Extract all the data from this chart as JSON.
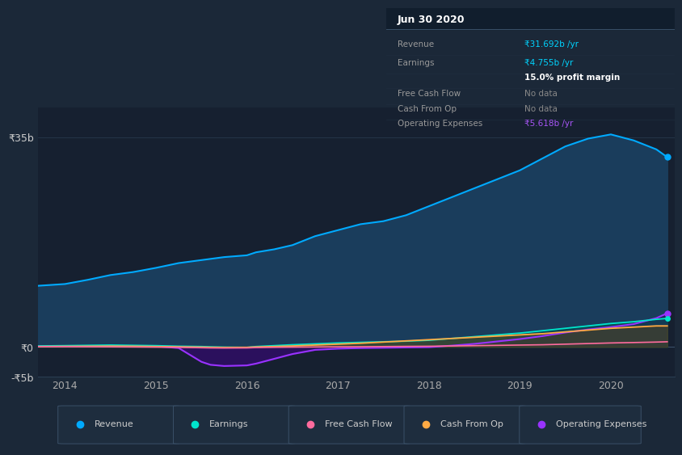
{
  "bg_color": "#1b2838",
  "plot_bg_color": "#1e2d3e",
  "chart_bg_color": "#162030",
  "grid_color": "#2a3d52",
  "title_box": {
    "date": "Jun 30 2020",
    "rows": [
      {
        "label": "Revenue",
        "value": "₹31.692b /yr",
        "value_color": "#00d4ff"
      },
      {
        "label": "Earnings",
        "value": "₹4.755b /yr",
        "value_color": "#00d4ff"
      },
      {
        "label": "",
        "value": "15.0% profit margin",
        "value_color": "#ffffff"
      },
      {
        "label": "Free Cash Flow",
        "value": "No data",
        "value_color": "#888888"
      },
      {
        "label": "Cash From Op",
        "value": "No data",
        "value_color": "#888888"
      },
      {
        "label": "Operating Expenses",
        "value": "₹5.618b /yr",
        "value_color": "#a855f7"
      }
    ]
  },
  "years": [
    2013.7,
    2014.0,
    2014.25,
    2014.5,
    2014.75,
    2015.0,
    2015.25,
    2015.5,
    2015.6,
    2015.75,
    2016.0,
    2016.1,
    2016.3,
    2016.5,
    2016.75,
    2017.0,
    2017.25,
    2017.5,
    2017.75,
    2018.0,
    2018.25,
    2018.5,
    2018.75,
    2019.0,
    2019.25,
    2019.5,
    2019.75,
    2020.0,
    2020.25,
    2020.5,
    2020.62
  ],
  "revenue": [
    10.2,
    10.5,
    11.2,
    12.0,
    12.5,
    13.2,
    14.0,
    14.5,
    14.7,
    15.0,
    15.3,
    15.8,
    16.3,
    17.0,
    18.5,
    19.5,
    20.5,
    21.0,
    22.0,
    23.5,
    25.0,
    26.5,
    28.0,
    29.5,
    31.5,
    33.5,
    34.8,
    35.5,
    34.5,
    33.0,
    31.7
  ],
  "earnings": [
    0.15,
    0.2,
    0.25,
    0.3,
    0.25,
    0.2,
    0.1,
    0.05,
    0.0,
    -0.05,
    -0.1,
    0.05,
    0.2,
    0.35,
    0.5,
    0.65,
    0.75,
    0.85,
    0.95,
    1.1,
    1.4,
    1.7,
    2.0,
    2.3,
    2.7,
    3.1,
    3.5,
    3.9,
    4.2,
    4.6,
    4.755
  ],
  "free_cash_flow": [
    0.05,
    0.05,
    0.02,
    0.0,
    -0.02,
    -0.05,
    -0.08,
    -0.15,
    -0.18,
    -0.2,
    -0.18,
    -0.12,
    -0.08,
    -0.05,
    -0.02,
    0.0,
    0.02,
    0.05,
    0.08,
    0.1,
    0.15,
    0.2,
    0.25,
    0.3,
    0.35,
    0.45,
    0.55,
    0.65,
    0.72,
    0.8,
    0.85
  ],
  "cash_from_op": [
    0.05,
    0.08,
    0.1,
    0.12,
    0.1,
    0.05,
    0.0,
    -0.05,
    -0.08,
    -0.1,
    -0.08,
    -0.02,
    0.05,
    0.15,
    0.3,
    0.45,
    0.6,
    0.8,
    1.0,
    1.2,
    1.4,
    1.6,
    1.8,
    2.0,
    2.2,
    2.5,
    2.8,
    3.1,
    3.3,
    3.5,
    3.5
  ],
  "op_expenses": [
    0.05,
    0.08,
    0.1,
    0.12,
    0.15,
    0.1,
    -0.2,
    -2.5,
    -3.0,
    -3.2,
    -3.1,
    -2.8,
    -2.0,
    -1.2,
    -0.5,
    -0.3,
    -0.2,
    -0.15,
    -0.1,
    -0.05,
    0.2,
    0.5,
    0.9,
    1.3,
    1.8,
    2.4,
    2.9,
    3.3,
    3.8,
    4.8,
    5.618
  ],
  "revenue_color": "#00aaff",
  "revenue_fill": "#1a3d5c",
  "earnings_color": "#00e5cc",
  "free_cash_color": "#ff6b9d",
  "cash_op_color": "#ffaa44",
  "op_exp_color": "#9933ff",
  "op_exp_fill": "#2d1060",
  "ylim": [
    -5,
    40
  ],
  "ytick_pos": [
    -5,
    0,
    35
  ],
  "ytick_labels": [
    "-₹5b",
    "₹0",
    "₹35b"
  ],
  "xticks": [
    2014,
    2015,
    2016,
    2017,
    2018,
    2019,
    2020
  ],
  "legend_items": [
    {
      "label": "Revenue",
      "color": "#00aaff"
    },
    {
      "label": "Earnings",
      "color": "#00e5cc"
    },
    {
      "label": "Free Cash Flow",
      "color": "#ff6b9d"
    },
    {
      "label": "Cash From Op",
      "color": "#ffaa44"
    },
    {
      "label": "Operating Expenses",
      "color": "#9933ff"
    }
  ]
}
